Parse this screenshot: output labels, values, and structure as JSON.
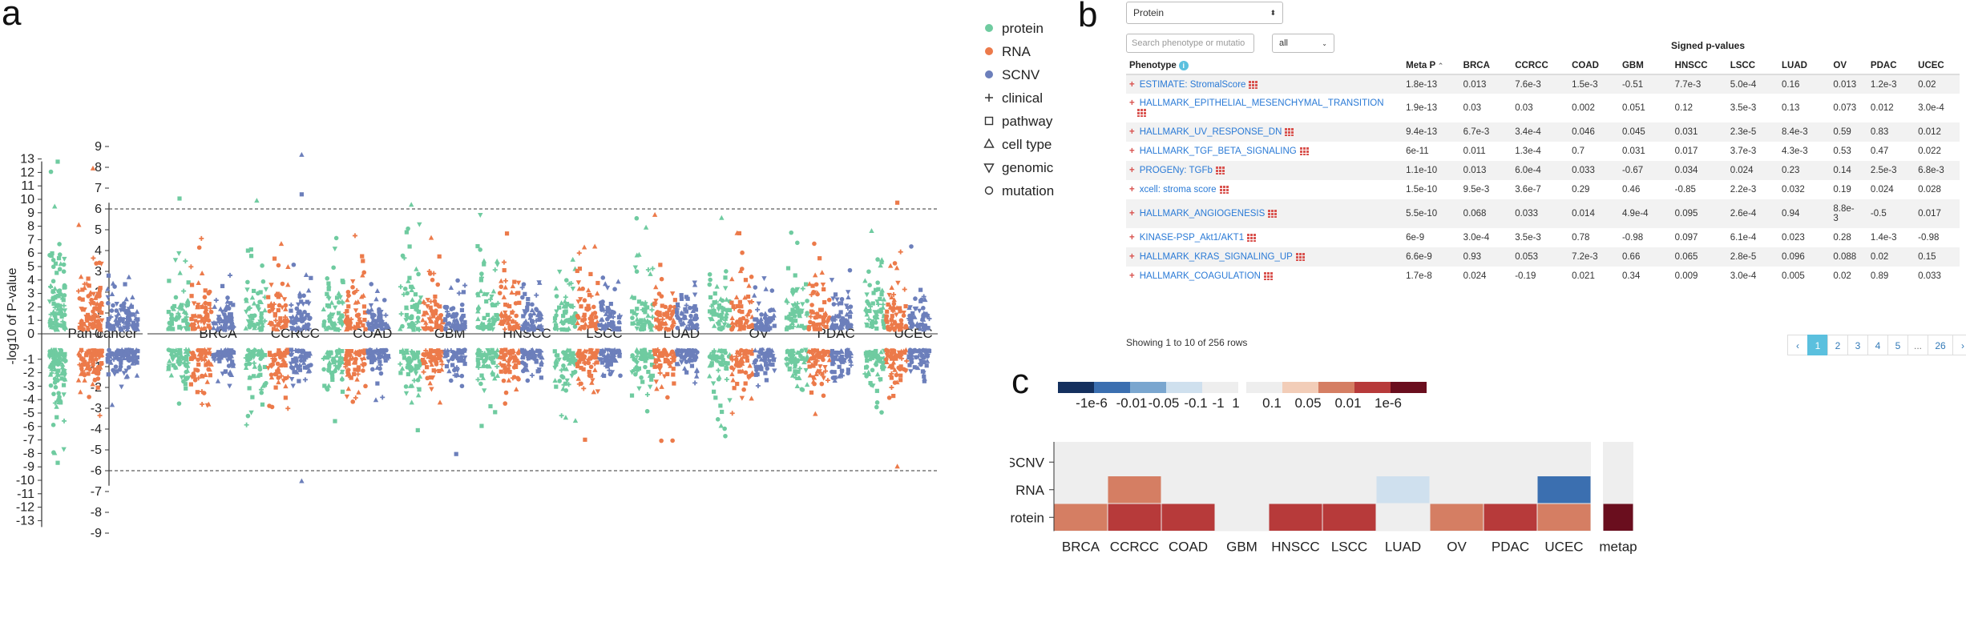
{
  "panels": {
    "a": "a",
    "b": "b",
    "c": "c"
  },
  "panelA": {
    "ylabel": "-log10 of P-value",
    "left_ticks_top": [
      "13",
      "12",
      "11",
      "10",
      "9",
      "8",
      "7",
      "6",
      "5",
      "4",
      "3",
      "2",
      "1",
      "0"
    ],
    "left_ticks_bottom": [
      "-1",
      "-2",
      "-3",
      "-4",
      "-5",
      "-6",
      "-7",
      "-8",
      "-9",
      "-10",
      "-11",
      "-12",
      "-13"
    ],
    "right_ticks_top": [
      "9",
      "8",
      "7",
      "6",
      "5",
      "4",
      "3",
      "2",
      "1",
      "0"
    ],
    "right_ticks_bottom": [
      "-1",
      "-2",
      "-3",
      "-4",
      "-5",
      "-6",
      "-7",
      "-8",
      "-9"
    ],
    "pancancer_label": "Pan-cancer",
    "cohorts": [
      "BRCA",
      "CCRCC",
      "COAD",
      "GBM",
      "HNSCC",
      "LSCC",
      "LUAD",
      "OV",
      "PDAC",
      "UCEC"
    ],
    "colors": {
      "protein": "#6fcba0",
      "RNA": "#ec7a4a",
      "SCNV": "#6c7fbb"
    },
    "legend": [
      {
        "label": "protein",
        "icon": "filled-circle-icon",
        "color": "#6fcba0"
      },
      {
        "label": "RNA",
        "icon": "filled-circle-icon",
        "color": "#ec7a4a"
      },
      {
        "label": "SCNV",
        "icon": "filled-circle-icon",
        "color": "#6c7fbb"
      },
      {
        "label": "clinical",
        "icon": "cross-icon"
      },
      {
        "label": "pathway",
        "icon": "square-icon"
      },
      {
        "label": "cell type",
        "icon": "triangle-icon"
      },
      {
        "label": "genomic",
        "icon": "triangle-down-icon"
      },
      {
        "label": "mutation",
        "icon": "circle-icon"
      }
    ],
    "threshold": 6
  },
  "panelB": {
    "dropdown": "Protein",
    "search_placeholder": "Search phenotype or mutatio",
    "filter": "all",
    "group_header": "Signed p-values",
    "columns": [
      "Phenotype",
      "Meta P",
      "BRCA",
      "CCRCC",
      "COAD",
      "GBM",
      "HNSCC",
      "LSCC",
      "LUAD",
      "OV",
      "PDAC",
      "UCEC"
    ],
    "rows": [
      {
        "name": "ESTIMATE: StromalScore",
        "line2": "",
        "vals": [
          "1.8e-13",
          "0.013",
          "7.6e-3",
          "1.5e-3",
          "-0.51",
          "7.7e-3",
          "5.0e-4",
          "0.16",
          "0.013",
          "1.2e-3",
          "0.02"
        ]
      },
      {
        "name": "HALLMARK_EPITHELIAL_MESENCHYMAL_TRANSITION",
        "line2": "",
        "vals": [
          "1.9e-13",
          "0.03",
          "0.03",
          "0.002",
          "0.051",
          "0.12",
          "3.5e-3",
          "0.13",
          "0.073",
          "0.012",
          "3.0e-4"
        ]
      },
      {
        "name": "HALLMARK_UV_RESPONSE_DN",
        "line2": "",
        "vals": [
          "9.4e-13",
          "6.7e-3",
          "3.4e-4",
          "0.046",
          "0.045",
          "0.031",
          "2.3e-5",
          "8.4e-3",
          "0.59",
          "0.83",
          "0.012"
        ]
      },
      {
        "name": "HALLMARK_TGF_BETA_SIGNALING",
        "line2": "",
        "vals": [
          "6e-11",
          "0.011",
          "1.3e-4",
          "0.7",
          "0.031",
          "0.017",
          "3.7e-3",
          "4.3e-3",
          "0.53",
          "0.47",
          "0.022"
        ]
      },
      {
        "name": "PROGENy: TGFb",
        "line2": "",
        "vals": [
          "1.1e-10",
          "0.013",
          "6.0e-4",
          "0.033",
          "-0.67",
          "0.034",
          "0.024",
          "0.23",
          "0.14",
          "2.5e-3",
          "6.8e-3"
        ]
      },
      {
        "name": "xcell: stroma score",
        "line2": "",
        "vals": [
          "1.5e-10",
          "9.5e-3",
          "3.6e-7",
          "0.29",
          "0.46",
          "-0.85",
          "2.2e-3",
          "0.032",
          "0.19",
          "0.024",
          "0.028"
        ]
      },
      {
        "name": "HALLMARK_ANGIOGENESIS",
        "line2": "",
        "vals": [
          "5.5e-10",
          "0.068",
          "0.033",
          "0.014",
          "4.9e-4",
          "0.095",
          "2.6e-4",
          "0.94",
          "8.8e-",
          "-0.5",
          "0.017"
        ],
        "ov_line2": "3"
      },
      {
        "name": "KINASE-PSP_Akt1/AKT1",
        "line2": "",
        "vals": [
          "6e-9",
          "3.0e-4",
          "3.5e-3",
          "0.78",
          "-0.98",
          "0.097",
          "6.1e-4",
          "0.023",
          "0.28",
          "1.4e-3",
          "-0.98"
        ]
      },
      {
        "name": "HALLMARK_KRAS_SIGNALING_UP",
        "line2": "",
        "vals": [
          "6.6e-9",
          "0.93",
          "0.053",
          "7.2e-3",
          "0.66",
          "0.065",
          "2.8e-5",
          "0.096",
          "0.088",
          "0.02",
          "0.15"
        ]
      },
      {
        "name": "HALLMARK_COAGULATION",
        "line2": "",
        "vals": [
          "1.7e-8",
          "0.024",
          "-0.19",
          "0.021",
          "0.34",
          "0.009",
          "3.0e-4",
          "0.005",
          "0.02",
          "0.89",
          "0.033"
        ]
      }
    ],
    "showing": "Showing 1 to 10 of 256 rows",
    "pages": [
      "‹",
      "1",
      "2",
      "3",
      "4",
      "5",
      "...",
      "26",
      "›"
    ],
    "active_page": "1"
  },
  "chart_data": [
    {
      "type": "scatter",
      "title": "",
      "ylabel": "-log10 of P-value",
      "categories": [
        "Pan-cancer",
        "BRCA",
        "CCRCC",
        "COAD",
        "GBM",
        "HNSCC",
        "LSCC",
        "LUAD",
        "OV",
        "PDAC",
        "UCEC"
      ],
      "series": [
        {
          "name": "protein"
        },
        {
          "name": "RNA"
        },
        {
          "name": "SCNV"
        }
      ],
      "ylim_pancancer": [
        -13,
        13
      ],
      "ylim_cohorts": [
        -9,
        9
      ],
      "threshold_lines": [
        6,
        -6
      ],
      "notable_points": [
        {
          "cohort": "Pan-cancer",
          "series": "protein",
          "y": 12.8
        },
        {
          "cohort": "Pan-cancer",
          "series": "RNA",
          "y": 12.3
        },
        {
          "cohort": "Pan-cancer",
          "series": "protein",
          "y": -8.7
        },
        {
          "cohort": "CCRCC",
          "series": "SCNV",
          "y": 8.6
        },
        {
          "cohort": "CCRCC",
          "series": "SCNV",
          "y": 6.7
        },
        {
          "cohort": "CCRCC",
          "series": "protein",
          "y": 6.4
        },
        {
          "cohort": "BRCA",
          "series": "protein",
          "y": 6.5
        },
        {
          "cohort": "GBM",
          "series": "protein",
          "y": 6.2
        },
        {
          "cohort": "UCEC",
          "series": "RNA",
          "y": 6.3
        },
        {
          "cohort": "CCRCC",
          "series": "SCNV",
          "y": -6.5
        },
        {
          "cohort": "GBM",
          "series": "SCNV",
          "y": -5.2
        },
        {
          "cohort": "UCEC",
          "series": "RNA",
          "y": -5.8
        }
      ]
    },
    {
      "type": "heatmap",
      "title": "",
      "x": [
        "BRCA",
        "CCRCC",
        "COAD",
        "GBM",
        "HNSCC",
        "LSCC",
        "LUAD",
        "OV",
        "PDAC",
        "UCEC",
        "metap"
      ],
      "y": [
        "SCNV",
        "RNA",
        "protein"
      ],
      "legend_labels": [
        "-1e-6",
        "-0.01",
        "-0.05",
        "-0.1",
        "-1",
        "1",
        "0.1",
        "0.05",
        "0.01",
        "1e-6"
      ],
      "legend_colors": [
        "#14305e",
        "#3b6fb0",
        "#7aa6cf",
        "#cfe0ee",
        "#eeeeee",
        "#eeeeee",
        "#f2cdb8",
        "#d57e63",
        "#b73a3a",
        "#6a0e1e"
      ],
      "values": {
        "SCNV": [
          "1",
          "1",
          "1",
          "1",
          "1",
          "1",
          "1",
          "1",
          "1",
          "1",
          null
        ],
        "RNA": [
          "1",
          "0.05",
          "1",
          "1",
          "1",
          "1",
          "-0.1",
          "1",
          "1",
          "-0.01",
          null
        ],
        "protein": [
          "0.05",
          "0.01",
          "0.01",
          "1",
          "0.01",
          "0.01",
          "1",
          "0.05",
          "0.01",
          "0.05",
          "1e-6"
        ]
      }
    }
  ]
}
